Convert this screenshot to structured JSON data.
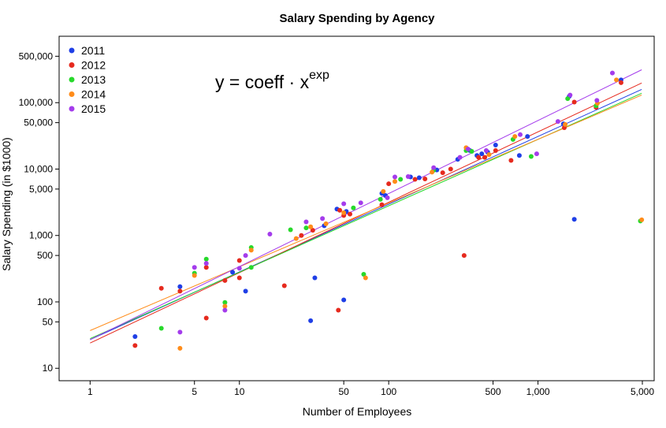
{
  "chart_data": {
    "type": "scatter",
    "title": "Salary Spending by Agency",
    "xlabel": "Number of Employees",
    "ylabel": "Salary Spending (in $1000)",
    "x_scale": "log",
    "y_scale": "log",
    "xlim": [
      0.62,
      6000
    ],
    "ylim": [
      6.5,
      1000000
    ],
    "x_ticks": [
      1,
      5,
      10,
      50,
      100,
      500,
      1000,
      5000
    ],
    "x_tick_labels": [
      "1",
      "5",
      "10",
      "50",
      "100",
      "500",
      "1,000",
      "5,000"
    ],
    "y_ticks": [
      10,
      50,
      100,
      500,
      1000,
      5000,
      10000,
      50000,
      100000,
      500000
    ],
    "y_tick_labels": [
      "10",
      "50",
      "100",
      "500",
      "1,000",
      "5,000",
      "10,000",
      "50,000",
      "100,000",
      "500,000"
    ],
    "grid": false,
    "legend_position": "top-left",
    "annotation": {
      "base": "y = coeff · x",
      "superscript": "exp"
    },
    "series": [
      {
        "name": "2011",
        "color": "#1f3fe6",
        "fit": {
          "coeff": 27,
          "exp": 1.02
        },
        "points": [
          [
            2,
            30
          ],
          [
            4,
            170
          ],
          [
            9,
            280
          ],
          [
            11,
            145
          ],
          [
            30,
            52
          ],
          [
            32,
            230
          ],
          [
            37,
            1400
          ],
          [
            50,
            107
          ],
          [
            45,
            2500
          ],
          [
            52,
            2300
          ],
          [
            90,
            4300
          ],
          [
            95,
            4000
          ],
          [
            140,
            7600
          ],
          [
            160,
            7400
          ],
          [
            210,
            9700
          ],
          [
            290,
            14000
          ],
          [
            350,
            19000
          ],
          [
            390,
            16000
          ],
          [
            420,
            17000
          ],
          [
            460,
            18000
          ],
          [
            520,
            23000
          ],
          [
            750,
            16000
          ],
          [
            850,
            31000
          ],
          [
            1480,
            48000
          ],
          [
            1620,
            125000
          ],
          [
            1750,
            1750
          ],
          [
            3600,
            220000
          ]
        ]
      },
      {
        "name": "2012",
        "color": "#e62a1e",
        "fit": {
          "coeff": 24,
          "exp": 1.06
        },
        "points": [
          [
            2,
            22
          ],
          [
            3,
            160
          ],
          [
            4,
            145
          ],
          [
            6,
            57
          ],
          [
            6,
            330
          ],
          [
            8,
            210
          ],
          [
            10,
            230
          ],
          [
            10,
            420
          ],
          [
            20,
            175
          ],
          [
            26,
            1000
          ],
          [
            31,
            1200
          ],
          [
            46,
            75
          ],
          [
            47,
            2400
          ],
          [
            50,
            2000
          ],
          [
            55,
            2100
          ],
          [
            90,
            2900
          ],
          [
            100,
            6000
          ],
          [
            150,
            7000
          ],
          [
            175,
            7100
          ],
          [
            230,
            8800
          ],
          [
            260,
            10000
          ],
          [
            320,
            500
          ],
          [
            400,
            15000
          ],
          [
            440,
            15000
          ],
          [
            520,
            19000
          ],
          [
            660,
            13500
          ],
          [
            1500,
            42000
          ],
          [
            1750,
            102000
          ],
          [
            2450,
            85000
          ],
          [
            3600,
            200000
          ]
        ]
      },
      {
        "name": "2013",
        "color": "#27d92b",
        "fit": {
          "coeff": 28,
          "exp": 1.0
        },
        "points": [
          [
            3,
            40
          ],
          [
            5,
            270
          ],
          [
            6,
            440
          ],
          [
            8,
            98
          ],
          [
            12,
            330
          ],
          [
            12,
            660
          ],
          [
            22,
            1220
          ],
          [
            28,
            1300
          ],
          [
            58,
            2600
          ],
          [
            68,
            260
          ],
          [
            88,
            3500
          ],
          [
            120,
            7000
          ],
          [
            200,
            9600
          ],
          [
            330,
            19000
          ],
          [
            360,
            18500
          ],
          [
            680,
            28000
          ],
          [
            900,
            15500
          ],
          [
            1580,
            115000
          ],
          [
            2450,
            90000
          ],
          [
            4850,
            1650
          ]
        ]
      },
      {
        "name": "2014",
        "color": "#ff8c1a",
        "fit": {
          "coeff": 37,
          "exp": 0.96
        },
        "points": [
          [
            4,
            20
          ],
          [
            5,
            250
          ],
          [
            8,
            86
          ],
          [
            12,
            600
          ],
          [
            24,
            900
          ],
          [
            30,
            1350
          ],
          [
            38,
            1500
          ],
          [
            50,
            2200
          ],
          [
            70,
            230
          ],
          [
            92,
            4600
          ],
          [
            110,
            6500
          ],
          [
            195,
            9000
          ],
          [
            330,
            21000
          ],
          [
            470,
            16500
          ],
          [
            700,
            31000
          ],
          [
            1520,
            47000
          ],
          [
            2500,
            98000
          ],
          [
            3350,
            220000
          ],
          [
            4950,
            1720
          ]
        ]
      },
      {
        "name": "2015",
        "color": "#a43cec",
        "fit": {
          "coeff": 27,
          "exp": 1.1
        },
        "points": [
          [
            4,
            35
          ],
          [
            5,
            330
          ],
          [
            6,
            380
          ],
          [
            8,
            75
          ],
          [
            10,
            320
          ],
          [
            11,
            500
          ],
          [
            16,
            1050
          ],
          [
            28,
            1600
          ],
          [
            36,
            1800
          ],
          [
            50,
            3000
          ],
          [
            65,
            3100
          ],
          [
            98,
            3700
          ],
          [
            110,
            7600
          ],
          [
            135,
            7700
          ],
          [
            200,
            10500
          ],
          [
            300,
            15000
          ],
          [
            340,
            20000
          ],
          [
            450,
            19000
          ],
          [
            760,
            33000
          ],
          [
            980,
            17000
          ],
          [
            1360,
            52000
          ],
          [
            1640,
            130000
          ],
          [
            2480,
            108000
          ],
          [
            3150,
            280000
          ]
        ]
      }
    ]
  }
}
